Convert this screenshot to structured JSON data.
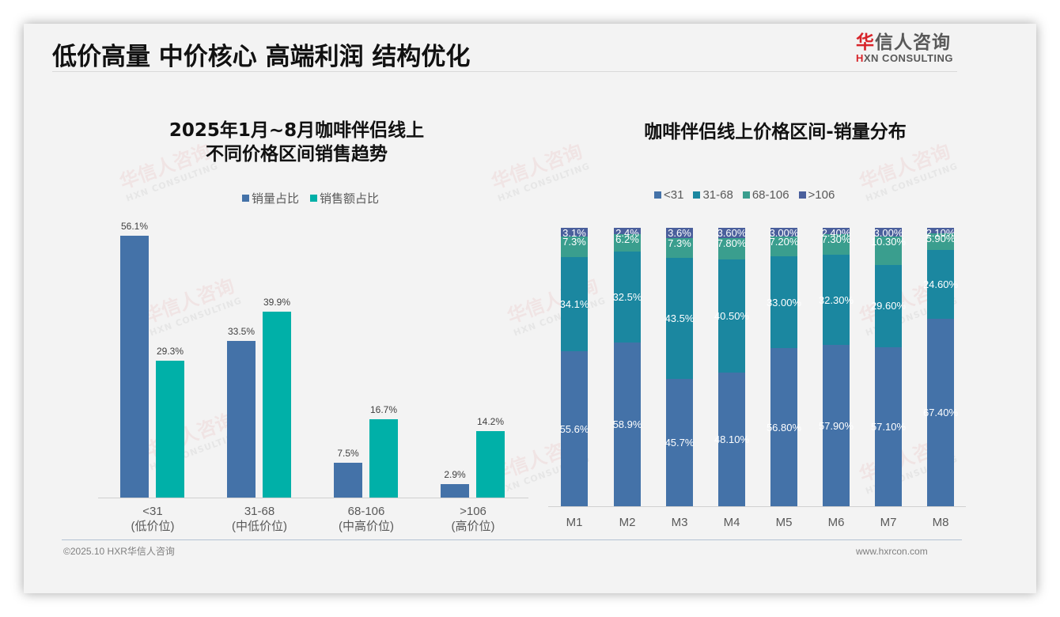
{
  "page": {
    "title": "低价高量 中价核心 高端利润 结构优化",
    "logo": {
      "cn_first": "华",
      "cn_rest": "信人咨询",
      "en_first": "H",
      "en_rest": "XN CONSULTING"
    },
    "watermark": {
      "cn": "华信人咨询",
      "en": "HXN CONSULTING"
    },
    "footer": {
      "left": "©2025.10 HXR华信人咨询",
      "right": "www.hxrcon.com"
    }
  },
  "left_chart": {
    "title_line1": "2025年1月~8月咖啡伴侣线上",
    "title_line2": "不同价格区间销售趋势",
    "legend": [
      {
        "label": "销量占比",
        "color": "#4472a8"
      },
      {
        "label": "销售额占比",
        "color": "#00b0a8"
      }
    ],
    "categories": [
      {
        "range": "<31",
        "tier": "(低价位)"
      },
      {
        "range": "31-68",
        "tier": "(中低价位)"
      },
      {
        "range": "68-106",
        "tier": "(中高价位)"
      },
      {
        "range": ">106",
        "tier": "(高价位)"
      }
    ],
    "labels": {
      "volume": [
        "56.1%",
        "33.5%",
        "7.5%",
        "2.9%"
      ],
      "sales": [
        "29.3%",
        "39.9%",
        "16.7%",
        "14.2%"
      ]
    }
  },
  "right_chart": {
    "title": "咖啡伴侣线上价格区间-销量分布",
    "legend": [
      {
        "label": "<31",
        "color": "#4472a8"
      },
      {
        "label": "31-68",
        "color": "#1b87a0"
      },
      {
        "label": "68-106",
        "color": "#3a9e8e"
      },
      {
        "label": ">106",
        "color": "#4a5f9c"
      }
    ],
    "months": [
      "M1",
      "M2",
      "M3",
      "M4",
      "M5",
      "M6",
      "M7",
      "M8"
    ],
    "labels": {
      "lt31": [
        "55.6%",
        "58.9%",
        "45.7%",
        "48.10%",
        "56.80%",
        "57.90%",
        "57.10%",
        "67.40%"
      ],
      "r31_68": [
        "34.1%",
        "32.5%",
        "43.5%",
        "40.50%",
        "33.00%",
        "32.30%",
        "29.60%",
        "24.60%"
      ],
      "r68_106": [
        "7.3%",
        "6.2%",
        "7.3%",
        "7.80%",
        "7.20%",
        "7.30%",
        "10.30%",
        "5.90%"
      ],
      "gt106": [
        "3.1%",
        "2.4%",
        "3.6%",
        "3.60%",
        "3.00%",
        "2.40%",
        "3.00%",
        "2.10%"
      ]
    }
  },
  "chart_data": [
    {
      "type": "bar",
      "title": "2025年1月~8月咖啡伴侣线上不同价格区间销售趋势",
      "categories": [
        "<31 (低价位)",
        "31-68 (中低价位)",
        "68-106 (中高价位)",
        ">106 (高价位)"
      ],
      "series": [
        {
          "name": "销量占比",
          "values": [
            56.1,
            33.5,
            7.5,
            2.9
          ],
          "color": "#4472a8"
        },
        {
          "name": "销售额占比",
          "values": [
            29.3,
            39.9,
            16.7,
            14.2
          ],
          "color": "#00b0a8"
        }
      ],
      "xlabel": "",
      "ylabel": "",
      "unit": "%",
      "legend_position": "top",
      "grid": false
    },
    {
      "type": "bar",
      "stacked": true,
      "title": "咖啡伴侣线上价格区间-销量分布",
      "categories": [
        "M1",
        "M2",
        "M3",
        "M4",
        "M5",
        "M6",
        "M7",
        "M8"
      ],
      "series": [
        {
          "name": "<31",
          "values": [
            55.6,
            58.9,
            45.7,
            48.1,
            56.8,
            57.9,
            57.1,
            67.4
          ],
          "color": "#4472a8"
        },
        {
          "name": "31-68",
          "values": [
            34.1,
            32.5,
            43.5,
            40.5,
            33.0,
            32.3,
            29.6,
            24.6
          ],
          "color": "#1b87a0"
        },
        {
          "name": "68-106",
          "values": [
            7.3,
            6.2,
            7.3,
            7.8,
            7.2,
            7.3,
            10.3,
            5.9
          ],
          "color": "#3a9e8e"
        },
        {
          "name": ">106",
          "values": [
            3.1,
            2.4,
            3.6,
            3.6,
            3.0,
            2.4,
            3.0,
            2.1
          ],
          "color": "#4a5f9c"
        }
      ],
      "ylim": [
        0,
        100
      ],
      "unit": "%",
      "legend_position": "top",
      "grid": false
    }
  ]
}
